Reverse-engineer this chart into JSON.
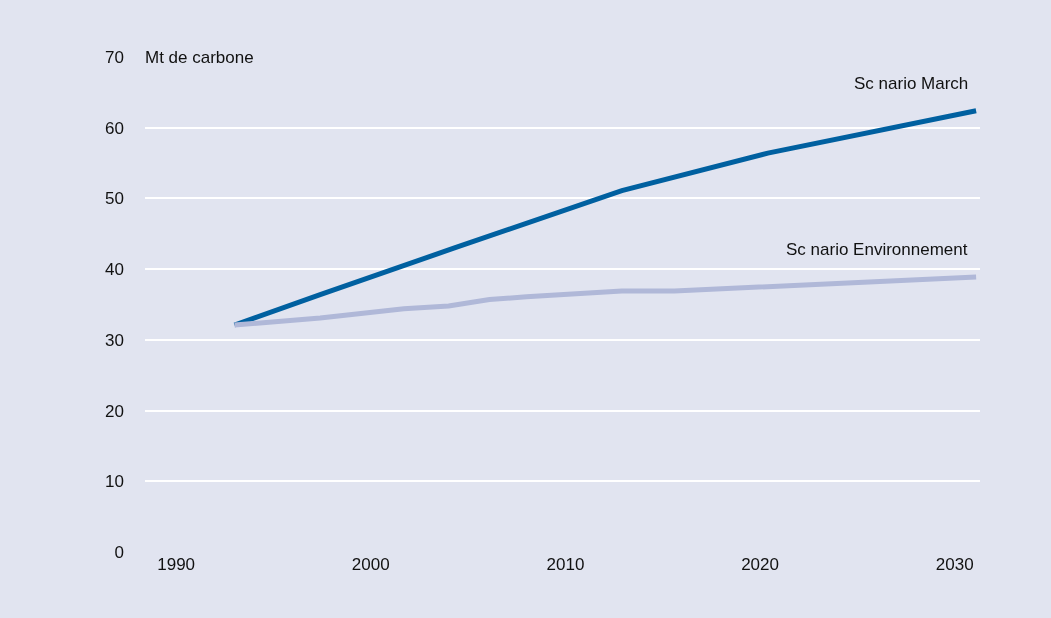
{
  "chart_data": {
    "type": "line",
    "ylabel": "Mt de carbone",
    "xlim": [
      1988.4,
      2031.3
    ],
    "xticks": [
      1990,
      2000,
      2010,
      2020,
      2030
    ],
    "ylim": [
      0,
      70
    ],
    "yticks": [
      0,
      10,
      20,
      30,
      40,
      50,
      60,
      70
    ],
    "grid": "y",
    "series": [
      {
        "name": "Sc nario March",
        "color": "#0060a0",
        "x": [
          1993,
          1997.4,
          2004.3,
          2012.9,
          2020.4,
          2031.1
        ],
        "values": [
          32.1,
          36.4,
          43.0,
          51.1,
          56.4,
          62.4
        ]
      },
      {
        "name": "Sc nario Environnement",
        "color": "#b0b8d8",
        "x": [
          1993,
          1997.4,
          2001.7,
          2004.0,
          2006.1,
          2008.0,
          2012.9,
          2015.6,
          2031.1
        ],
        "values": [
          32.1,
          33.1,
          34.4,
          34.8,
          35.7,
          36.1,
          36.9,
          36.9,
          38.9
        ]
      }
    ]
  }
}
